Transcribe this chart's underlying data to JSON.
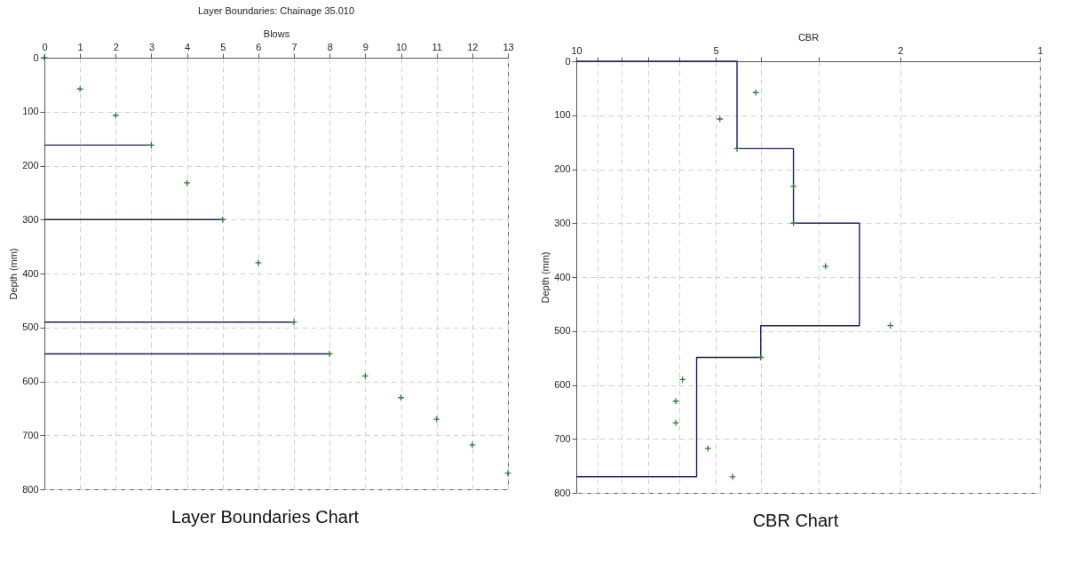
{
  "chart_data": [
    {
      "type": "scatter",
      "title": "Layer Boundaries: Chainage 35.010",
      "xlabel": "Blows",
      "ylabel": "Depth (mm)",
      "annotations": [
        "Layer Boundaries Chart"
      ],
      "marker": "cross",
      "grid": true,
      "xlim": [
        0,
        13
      ],
      "xticks": [
        0,
        1,
        2,
        3,
        4,
        5,
        6,
        7,
        8,
        9,
        10,
        11,
        12,
        13
      ],
      "ylim": [
        800,
        0
      ],
      "yticks": [
        0,
        100,
        200,
        300,
        400,
        500,
        600,
        700,
        800
      ],
      "series": [
        {
          "color": "#2e7d32",
          "x": [
            0,
            1,
            2,
            3,
            4,
            5,
            6,
            7,
            8,
            9,
            10,
            11,
            12,
            13
          ],
          "values": [
            0,
            58,
            107,
            162,
            232,
            300,
            380,
            490,
            549,
            590,
            630,
            670,
            718,
            770
          ]
        },
        {
          "type": "line",
          "marker": "none",
          "color": "#1c1c6b",
          "x": [
            0,
            3
          ],
          "values": [
            162,
            162
          ]
        },
        {
          "type": "line",
          "marker": "none",
          "color": "#1c1c6b",
          "x": [
            0,
            5
          ],
          "values": [
            300,
            300
          ]
        },
        {
          "type": "line",
          "marker": "none",
          "color": "#1c1c6b",
          "x": [
            0,
            7
          ],
          "values": [
            490,
            490
          ]
        },
        {
          "type": "line",
          "marker": "none",
          "color": "#1c1c6b",
          "x": [
            0,
            8
          ],
          "values": [
            549,
            549
          ]
        }
      ]
    },
    {
      "type": "scatter",
      "xlabel": "CBR",
      "ylabel": "Depth (mm)",
      "annotations": [
        "CBR Chart"
      ],
      "marker": "cross",
      "grid": true,
      "log": "x",
      "xlim": [
        10,
        1
      ],
      "xticks": [
        10,
        {
          "value": 9,
          "label": null
        },
        {
          "value": 8,
          "label": null
        },
        {
          "value": 7,
          "label": null
        },
        {
          "value": 6,
          "label": null
        },
        5,
        {
          "value": 4,
          "label": null
        },
        {
          "value": 3,
          "label": null
        },
        2,
        1
      ],
      "ylim": [
        800,
        0
      ],
      "yticks": [
        0,
        100,
        200,
        300,
        400,
        500,
        600,
        700,
        800
      ],
      "series": [
        {
          "color": "#2e7d32",
          "x": [
            4.1,
            4.9,
            4.5,
            3.4,
            3.4,
            2.9,
            2.1,
            4.0,
            5.9,
            6.1,
            6.1,
            5.2,
            4.6
          ],
          "values": [
            58,
            107,
            162,
            232,
            300,
            380,
            490,
            549,
            590,
            630,
            670,
            718,
            770
          ]
        },
        {
          "type": "line",
          "marker": "none",
          "color": "#1c1c6b",
          "x": [
            10,
            4.5,
            4.5,
            3.4,
            3.4,
            2.45,
            2.45,
            4.0,
            4.0,
            5.5,
            5.5,
            10
          ],
          "values": [
            0,
            0,
            162,
            162,
            300,
            300,
            490,
            490,
            549,
            549,
            770,
            770
          ]
        }
      ]
    }
  ]
}
